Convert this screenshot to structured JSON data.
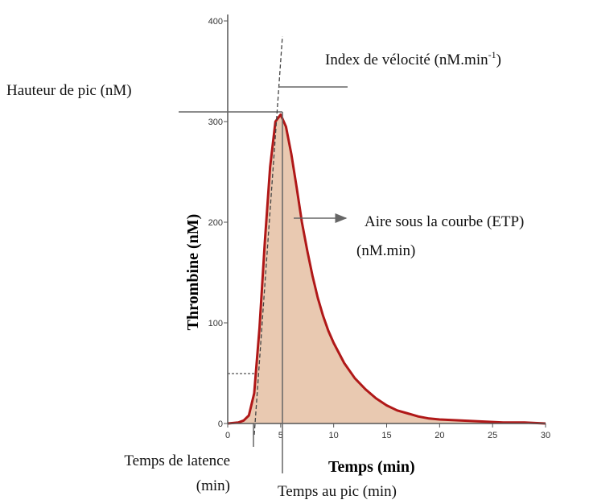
{
  "chart_data": {
    "type": "area",
    "xlabel": "Temps (min)",
    "ylabel": "Thrombine (nM)",
    "xlim": [
      0,
      30
    ],
    "ylim": [
      0,
      400
    ],
    "x_ticks": [
      "0",
      "5",
      "10",
      "15",
      "20",
      "25",
      "30"
    ],
    "y_ticks": [
      "0",
      "100",
      "200",
      "300",
      "400"
    ],
    "grid": false,
    "colors": {
      "curve": "#b01818",
      "fill": "#e9c9b1",
      "axis": "#555555"
    },
    "series": [
      {
        "x": [
          0,
          1,
          1.5,
          2,
          2.5,
          3,
          3.5,
          4,
          4.5,
          5,
          5.5,
          6,
          6.5,
          7,
          7.5,
          8,
          8.5,
          9,
          9.5,
          10,
          11,
          12,
          13,
          14,
          15,
          16,
          17,
          18,
          19,
          20,
          22,
          24,
          26,
          28,
          30
        ],
        "y": [
          0,
          1,
          3,
          8,
          30,
          95,
          180,
          255,
          300,
          307,
          295,
          268,
          235,
          200,
          172,
          147,
          125,
          107,
          92,
          80,
          60,
          45,
          34,
          25,
          18,
          13,
          10,
          7,
          5,
          4,
          3,
          2,
          1,
          1,
          0
        ]
      }
    ],
    "annotations": {
      "peak_height": "Hauteur de pic (nM)",
      "velocity_index_main": "Index de vélocité (nM.min",
      "velocity_index_sup": "-1",
      "velocity_index_close": ")",
      "area_line1": "Aire sous la courbe (ETP)",
      "area_line2": "(nM.min)",
      "lag_time_line1": "Temps de latence",
      "lag_time_line2": "(min)",
      "time_to_peak": "Temps au pic (min)"
    }
  }
}
